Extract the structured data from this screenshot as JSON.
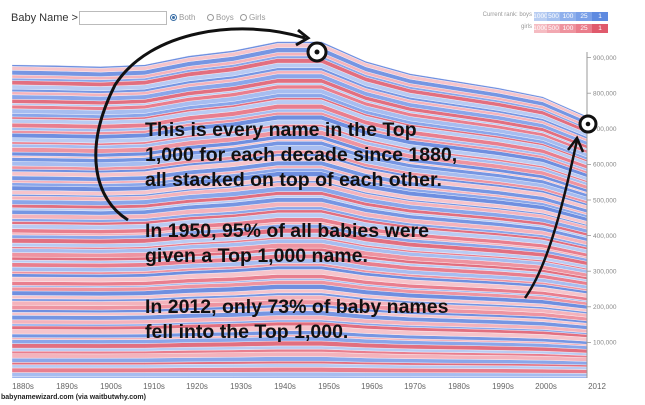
{
  "header": {
    "title": "Baby Name >",
    "search_value": "",
    "filters": {
      "both": "Both",
      "boys": "Boys",
      "girls": "Girls",
      "selected": "both"
    },
    "current_rank_label": "Current rank:",
    "boys_label": "boys",
    "girls_label": "girls",
    "ranks": [
      "1000",
      "500",
      "100",
      "25",
      "1"
    ],
    "colors": {
      "boys": [
        "#b8cdf2",
        "#a5c0ef",
        "#8fb0ec",
        "#7aa0e8",
        "#5e8ae0"
      ],
      "girls": [
        "#f5bcc2",
        "#f2a8b1",
        "#ee939e",
        "#ea7d8b",
        "#e05a6c"
      ]
    }
  },
  "chart_data": {
    "type": "area",
    "stacked": true,
    "x": [
      "1880s",
      "1890s",
      "1900s",
      "1910s",
      "1920s",
      "1930s",
      "1940s",
      "1950s",
      "1960s",
      "1970s",
      "1980s",
      "1990s",
      "2000s",
      "2012"
    ],
    "total": [
      880000,
      878000,
      875000,
      880000,
      905000,
      920000,
      945000,
      945000,
      890000,
      855000,
      835000,
      815000,
      790000,
      735000
    ],
    "yticks": [
      100000,
      200000,
      300000,
      400000,
      500000,
      600000,
      700000,
      800000,
      900000
    ],
    "ylim": [
      0,
      1000000
    ],
    "series_colors": {
      "boys": "#8fa9ea",
      "girls": "#ef9aa6"
    },
    "annotations": [
      "This is every name in the Top",
      "1,000 for each decade since 1880,",
      "all stacked on top of each other.",
      "In 1950, 95% of all babies were",
      "given a Top 1,000 name.",
      "In 2012, only 73% of baby names",
      "fell into the Top 1,000."
    ]
  },
  "footer": {
    "credit": "babynamewizard.com (via waitbutwhy.com)"
  }
}
